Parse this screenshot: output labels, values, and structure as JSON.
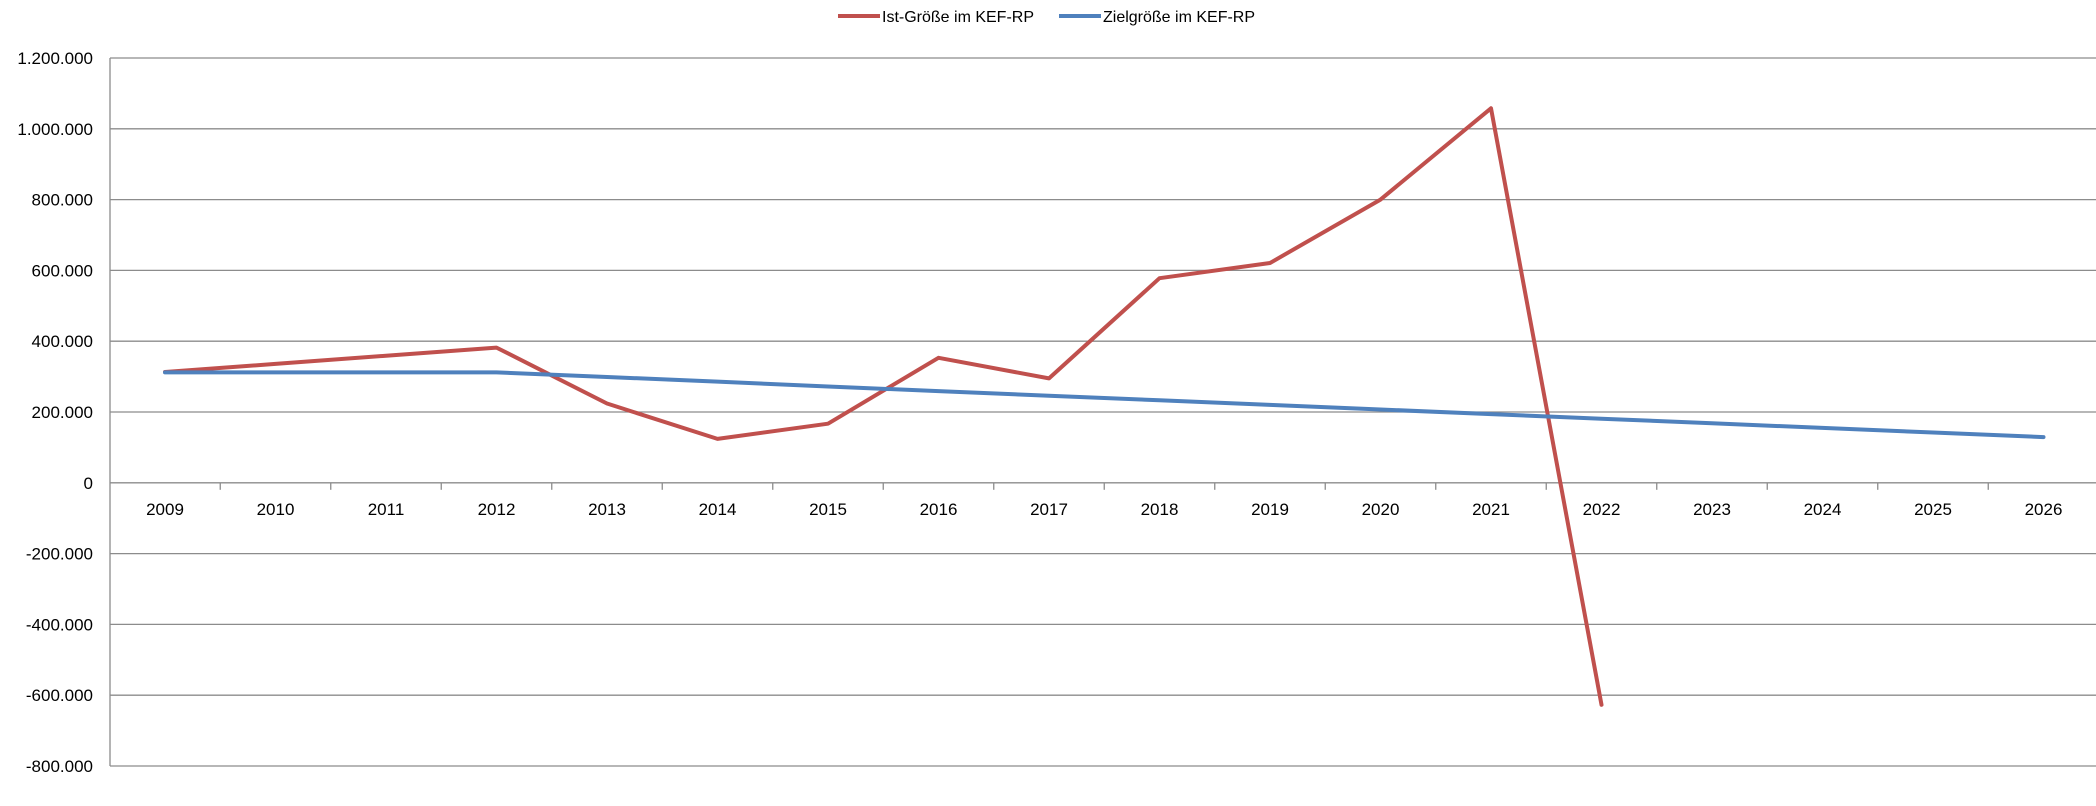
{
  "chart_data": {
    "type": "line",
    "title": "",
    "xlabel": "",
    "ylabel": "",
    "categories": [
      "2009",
      "2010",
      "2011",
      "2012",
      "2013",
      "2014",
      "2015",
      "2016",
      "2017",
      "2018",
      "2019",
      "2020",
      "2021",
      "2022",
      "2023",
      "2024",
      "2025",
      "2026"
    ],
    "ylim": [
      -800000,
      1200000
    ],
    "yticks": [
      1200000,
      1000000,
      800000,
      600000,
      400000,
      200000,
      0,
      -200000,
      -400000,
      -600000,
      -800000
    ],
    "ytick_labels": [
      "1.200.000",
      "1.000.000",
      "800.000",
      "600.000",
      "400.000",
      "200.000",
      "0",
      "-200.000",
      "-400.000",
      "-600.000",
      "-800.000"
    ],
    "grid": true,
    "legend_position": "top-center",
    "series": [
      {
        "name": "Ist-Größe im KEF-RP",
        "color": "#c0504d",
        "values": [
          313000,
          336000,
          359000,
          382000,
          224000,
          124000,
          167000,
          353000,
          295000,
          578000,
          621000,
          800000,
          1058000,
          -627000,
          null,
          null,
          null,
          null
        ]
      },
      {
        "name": "Zielgröße im KEF-RP",
        "color": "#4f81bd",
        "values": [
          312000,
          312000,
          312000,
          312000,
          299000,
          286000,
          272000,
          259000,
          246000,
          233000,
          220000,
          207000,
          194000,
          181000,
          168000,
          155000,
          142000,
          129000
        ]
      }
    ]
  }
}
